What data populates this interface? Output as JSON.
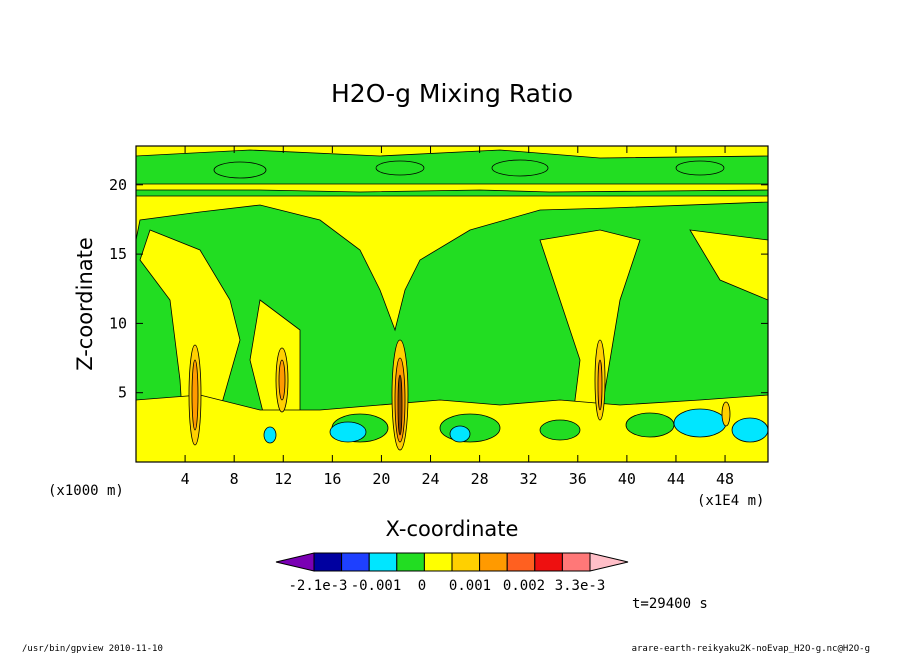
{
  "chart_data": {
    "type": "contour",
    "title": "H2O-g Mixing Ratio",
    "xlabel": "X-coordinate",
    "ylabel": "Z-coordinate",
    "x_unit_note": "(x1000 m)",
    "x_scale_note": "(x1E4 m)",
    "xlim": [
      0,
      51.5
    ],
    "ylim": [
      0,
      22.8
    ],
    "x_ticks": [
      4,
      8,
      12,
      16,
      20,
      24,
      28,
      32,
      36,
      40,
      44,
      48
    ],
    "y_ticks": [
      5,
      10,
      15,
      20
    ],
    "colorbar": {
      "colors": [
        "#7a00b4",
        "#0000a0",
        "#1e40ff",
        "#00e6ff",
        "#22dd22",
        "#ffff00",
        "#ffd000",
        "#ff9a00",
        "#ff6020",
        "#ee1010",
        "#ff7878",
        "#ffbfc8"
      ],
      "labels": [
        "-2.1e-3",
        "-0.001",
        "0",
        "0.001",
        "0.002",
        "3.3e-3"
      ]
    },
    "annotation": "t=29400 s",
    "footer_left": "/usr/bin/gpview  2010-11-10",
    "footer_right": "arare-earth-reikyaku2K-noEvap_H2O-g.nc@H2O-g"
  }
}
